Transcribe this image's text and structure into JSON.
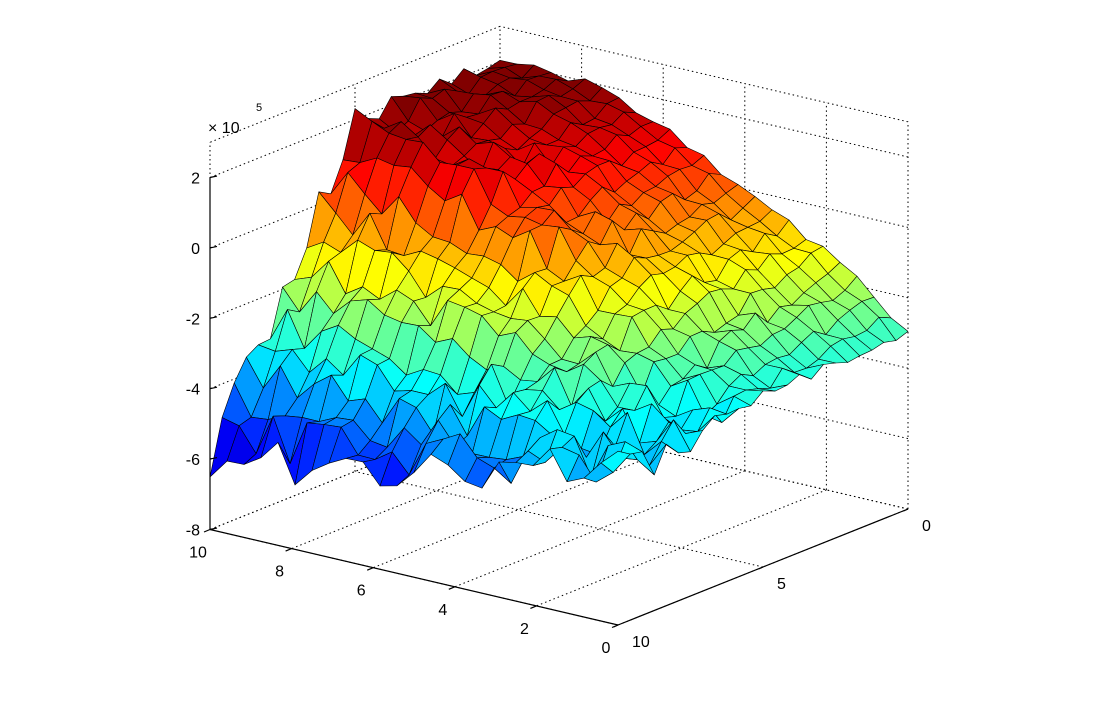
{
  "chart_data": {
    "type": "surface",
    "title": "",
    "xlabel": "",
    "ylabel": "",
    "zlabel": "",
    "z_multiplier_label": {
      "base": "× 10",
      "exponent": "5"
    },
    "x_axis": {
      "ticks": [
        0,
        5,
        10
      ],
      "tick_labels": [
        "0",
        "5",
        "10"
      ],
      "range": [
        0,
        10
      ]
    },
    "y_axis": {
      "ticks": [
        0,
        2,
        4,
        6,
        8,
        10
      ],
      "tick_labels": [
        "0",
        "2",
        "4",
        "6",
        "8",
        "10"
      ],
      "range": [
        0,
        10
      ]
    },
    "z_axis": {
      "ticks": [
        -8,
        -6,
        -4,
        -2,
        0,
        2
      ],
      "tick_labels": [
        "-8",
        "-6",
        "-4",
        "-2",
        "0",
        "2"
      ],
      "range": [
        -8,
        3
      ],
      "scale": 100000
    },
    "grid": true,
    "box": true,
    "colormap": "jet",
    "color_range": [
      -6.6,
      2
    ],
    "grid_points": 25,
    "surface_z_samples": {
      "note_unit": "x10^5",
      "y_values": [
        0,
        2,
        4,
        6,
        8,
        10
      ],
      "z_at_x0": [
        -3.0,
        -1.2,
        -0.1,
        1.3,
        2.0,
        2.1
      ],
      "z_at_x5": [
        -3.4,
        -2.6,
        -0.6,
        0.6,
        1.3,
        1.9
      ],
      "z_at_x10": [
        -3.6,
        -4.2,
        -4.8,
        -5.6,
        -5.7,
        -6.0
      ]
    }
  },
  "colors": {
    "axis": "#000000",
    "grid": "#000000",
    "mesh_edge": "#000000",
    "background": "#ffffff"
  }
}
